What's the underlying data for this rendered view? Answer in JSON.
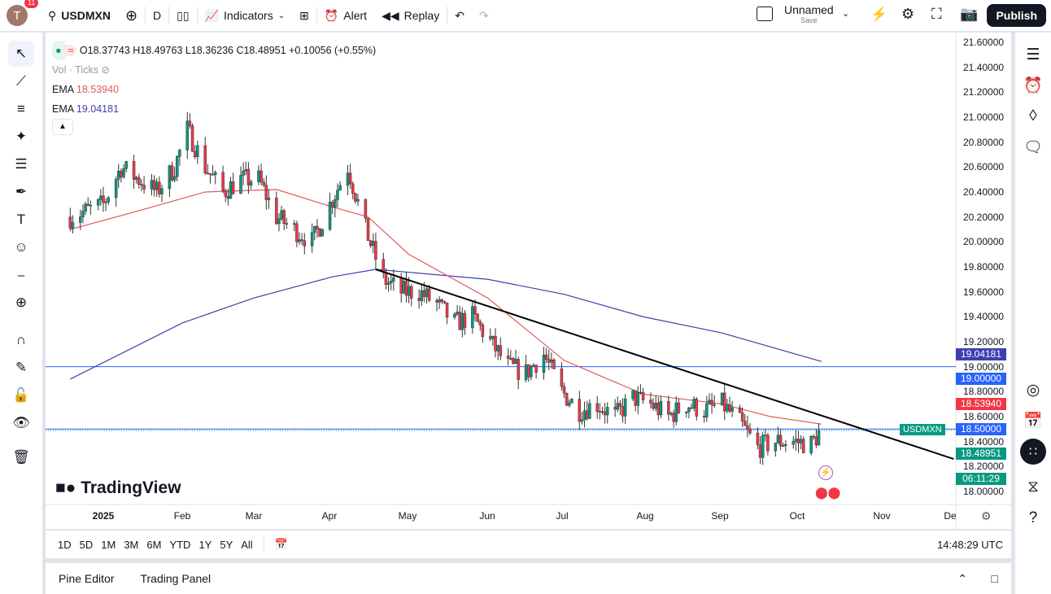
{
  "topbar": {
    "avatar_letter": "T",
    "notifications": "11",
    "symbol": "USDMXN",
    "interval": "D",
    "indicators": "Indicators",
    "alert": "Alert",
    "replay": "Replay",
    "layout_name": "Unnamed",
    "layout_sub": "Save",
    "publish": "Publish"
  },
  "legend": {
    "ohlc": "O18.37743 H18.49763 L18.36236 C18.48951 +0.10056 (+0.55%)",
    "vol": "Vol · Ticks",
    "ema1_label": "EMA",
    "ema1_value": "18.53940",
    "ema2_label": "EMA",
    "ema2_value": "19.04181"
  },
  "price_axis": [
    "21.60000",
    "21.40000",
    "21.20000",
    "21.00000",
    "20.80000",
    "20.60000",
    "20.40000",
    "20.20000",
    "20.00000",
    "19.80000",
    "19.60000",
    "19.40000",
    "19.20000",
    "19.00000",
    "18.80000",
    "18.60000",
    "18.40000",
    "18.20000",
    "18.00000"
  ],
  "price_labels": {
    "ema2": "19.04181",
    "level1": "19.00000",
    "ema1": "18.53940",
    "level2": "18.50000",
    "last": "18.48951",
    "countdown": "06:11:29",
    "symbol_tag": "USDMXN"
  },
  "time_axis": [
    "2025",
    "Feb",
    "Mar",
    "Apr",
    "May",
    "Jun",
    "Jul",
    "Aug",
    "Sep",
    "Oct",
    "Nov",
    "De"
  ],
  "logo": "TradingView",
  "ranges": [
    "1D",
    "5D",
    "1M",
    "3M",
    "6M",
    "YTD",
    "1Y",
    "5Y",
    "All"
  ],
  "clock": "14:48:29 UTC",
  "bottom_tabs": [
    "Pine Editor",
    "Trading Panel"
  ],
  "colors": {
    "up": "#089981",
    "down": "#f23645",
    "ema_fast": "#e05a5a",
    "ema_slow": "#3f3fb0",
    "level": "#2962ff"
  },
  "chart_data": {
    "type": "candlestick",
    "symbol": "USDMXN",
    "interval": "D",
    "closes_approx": [
      [
        "2024-12-19",
        20.2
      ],
      [
        "2025-01-01",
        20.3
      ],
      [
        "2025-01-08",
        20.6
      ],
      [
        "2025-01-15",
        20.5
      ],
      [
        "2025-01-22",
        20.4
      ],
      [
        "2025-01-29",
        20.6
      ],
      [
        "2025-02-03",
        20.9
      ],
      [
        "2025-02-10",
        20.6
      ],
      [
        "2025-02-17",
        20.4
      ],
      [
        "2025-02-24",
        20.5
      ],
      [
        "2025-03-03",
        20.5
      ],
      [
        "2025-03-10",
        20.2
      ],
      [
        "2025-03-17",
        20.1
      ],
      [
        "2025-03-24",
        20.0
      ],
      [
        "2025-03-31",
        20.3
      ],
      [
        "2025-04-07",
        20.6
      ],
      [
        "2025-04-14",
        20.1
      ],
      [
        "2025-04-21",
        19.7
      ],
      [
        "2025-04-28",
        19.6
      ],
      [
        "2025-05-05",
        19.6
      ],
      [
        "2025-05-12",
        19.5
      ],
      [
        "2025-05-19",
        19.35
      ],
      [
        "2025-05-26",
        19.4
      ],
      [
        "2025-06-02",
        19.2
      ],
      [
        "2025-06-09",
        19.0
      ],
      [
        "2025-06-16",
        18.95
      ],
      [
        "2025-06-23",
        19.1
      ],
      [
        "2025-06-30",
        18.8
      ],
      [
        "2025-07-07",
        18.65
      ],
      [
        "2025-07-14",
        18.7
      ],
      [
        "2025-07-21",
        18.6
      ],
      [
        "2025-07-28",
        18.75
      ],
      [
        "2025-08-04",
        18.7
      ],
      [
        "2025-08-11",
        18.6
      ],
      [
        "2025-08-18",
        18.7
      ],
      [
        "2025-08-25",
        18.65
      ],
      [
        "2025-09-01",
        18.7
      ],
      [
        "2025-09-08",
        18.55
      ],
      [
        "2025-09-15",
        18.35
      ],
      [
        "2025-09-22",
        18.4
      ],
      [
        "2025-09-29",
        18.4
      ],
      [
        "2025-10-06",
        18.38
      ],
      [
        "2025-10-10",
        18.49
      ]
    ],
    "ema_fast": [
      [
        "2024-12-19",
        20.1
      ],
      [
        "2025-01-15",
        20.25
      ],
      [
        "2025-02-10",
        20.4
      ],
      [
        "2025-03-10",
        20.42
      ],
      [
        "2025-04-01",
        20.28
      ],
      [
        "2025-04-15",
        20.2
      ],
      [
        "2025-05-01",
        19.9
      ],
      [
        "2025-06-01",
        19.55
      ],
      [
        "2025-07-01",
        19.05
      ],
      [
        "2025-08-01",
        18.78
      ],
      [
        "2025-09-01",
        18.7
      ],
      [
        "2025-09-20",
        18.6
      ],
      [
        "2025-10-10",
        18.5394
      ]
    ],
    "ema_slow": [
      [
        "2024-12-19",
        18.9
      ],
      [
        "2025-02-01",
        19.35
      ],
      [
        "2025-03-01",
        19.55
      ],
      [
        "2025-04-01",
        19.72
      ],
      [
        "2025-04-18",
        19.78
      ],
      [
        "2025-06-01",
        19.7
      ],
      [
        "2025-07-01",
        19.58
      ],
      [
        "2025-08-01",
        19.4
      ],
      [
        "2025-09-01",
        19.27
      ],
      [
        "2025-10-10",
        19.0418
      ]
    ],
    "trendline": [
      [
        "2025-04-18",
        19.78
      ],
      [
        "2025-12-01",
        18.26
      ]
    ],
    "horizontal_levels": [
      19.0,
      18.5
    ],
    "ylim": [
      18.0,
      21.6
    ]
  }
}
